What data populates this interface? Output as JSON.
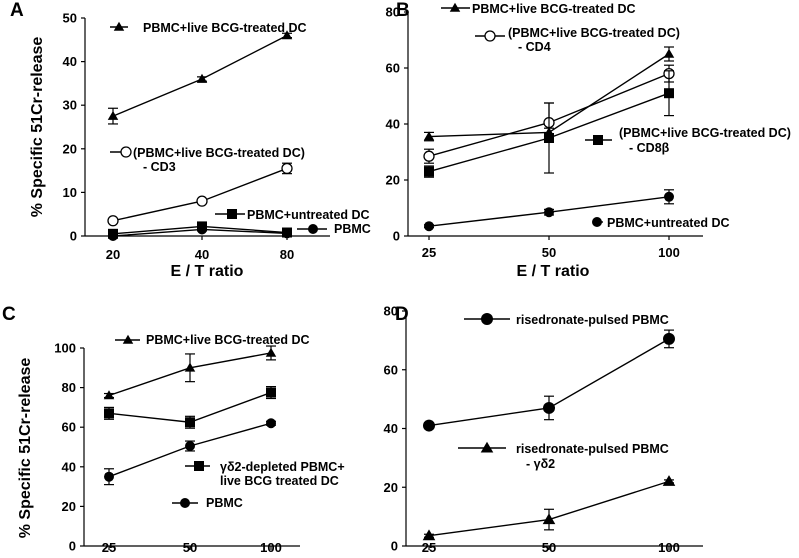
{
  "chart_data": [
    {
      "panel_label": "A",
      "type": "line",
      "xlabel": "E / T ratio",
      "ylabel": "% Specific 51Cr-release",
      "categories": [
        "20",
        "40",
        "80"
      ],
      "ylim": [
        0,
        50
      ],
      "yticks": [
        "0",
        "10",
        "20",
        "30",
        "40",
        "50"
      ],
      "series": [
        {
          "name": "PBMC+live BCG-treated DC",
          "marker": "triangle",
          "values": [
            27.5,
            36,
            46
          ],
          "errors": [
            1.8,
            0.5,
            0.5
          ]
        },
        {
          "name": "(PBMC+live BCG-treated DC)",
          "name2": "- CD3",
          "marker": "circle-open",
          "values": [
            3.5,
            8,
            15.5
          ],
          "errors": [
            0.3,
            0.3,
            1.2
          ]
        },
        {
          "name": "PBMC+untreated DC",
          "marker": "square",
          "values": [
            0.5,
            2.2,
            0.8
          ],
          "errors": [
            0.3,
            0.3,
            0.3
          ]
        },
        {
          "name": "PBMC",
          "marker": "circle",
          "values": [
            0,
            1.5,
            0.6
          ],
          "errors": [
            0.2,
            0.2,
            0.2
          ]
        }
      ]
    },
    {
      "panel_label": "B",
      "type": "line",
      "xlabel": "E / T ratio",
      "ylabel": "",
      "categories": [
        "25",
        "50",
        "100"
      ],
      "ylim": [
        0,
        80
      ],
      "yticks": [
        "0",
        "20",
        "40",
        "60",
        "80"
      ],
      "series": [
        {
          "name": "PBMC+live BCG-treated DC",
          "marker": "triangle",
          "values": [
            35.5,
            37,
            65
          ],
          "errors": [
            1.5,
            1.5,
            2.5
          ]
        },
        {
          "name": "(PBMC+live BCG-treated DC)",
          "name2": "- CD4",
          "marker": "circle-open",
          "values": [
            28.5,
            40.5,
            58
          ],
          "errors": [
            2.5,
            7,
            3
          ]
        },
        {
          "name": "(PBMC+live BCG-treated DC)",
          "name2": "- CD8β",
          "marker": "square",
          "values": [
            23,
            35,
            51
          ],
          "errors": [
            2,
            12.5,
            8
          ]
        },
        {
          "name": "PBMC+untreated DC",
          "marker": "circle",
          "values": [
            3.5,
            8.5,
            14
          ],
          "errors": [
            0.5,
            1,
            2.5
          ]
        }
      ]
    },
    {
      "panel_label": "C",
      "type": "line",
      "xlabel": "",
      "ylabel": "% Specific 51Cr-release",
      "categories": [
        "25",
        "50",
        "100"
      ],
      "ylim": [
        0,
        100
      ],
      "yticks": [
        "0",
        "20",
        "40",
        "60",
        "80",
        "100"
      ],
      "series": [
        {
          "name": "PBMC+live BCG-treated DC",
          "marker": "triangle",
          "values": [
            76,
            90,
            97.5
          ],
          "errors": [
            1,
            7,
            3.5
          ]
        },
        {
          "name": "γδ2-depleted PBMC+",
          "name2": "live BCG treated DC",
          "marker": "square",
          "values": [
            67,
            62.5,
            77.5
          ],
          "errors": [
            3,
            3,
            3
          ]
        },
        {
          "name": "PBMC",
          "marker": "circle",
          "values": [
            35,
            50.5,
            62
          ],
          "errors": [
            4,
            2.5,
            1
          ]
        }
      ]
    },
    {
      "panel_label": "D",
      "type": "line",
      "xlabel": "",
      "ylabel": "",
      "categories": [
        "25",
        "50",
        "100"
      ],
      "ylim": [
        0,
        80
      ],
      "yticks": [
        "0",
        "20",
        "40",
        "60",
        "80"
      ],
      "series": [
        {
          "name": "risedronate-pulsed PBMC",
          "marker": "circle",
          "values": [
            41,
            47,
            70.5
          ],
          "errors": [
            1,
            4,
            3
          ]
        },
        {
          "name": "risedronate-pulsed PBMC",
          "name2": "- γδ2",
          "marker": "triangle",
          "values": [
            3.5,
            9,
            22
          ],
          "errors": [
            0.5,
            3.5,
            0.5
          ]
        }
      ]
    }
  ]
}
